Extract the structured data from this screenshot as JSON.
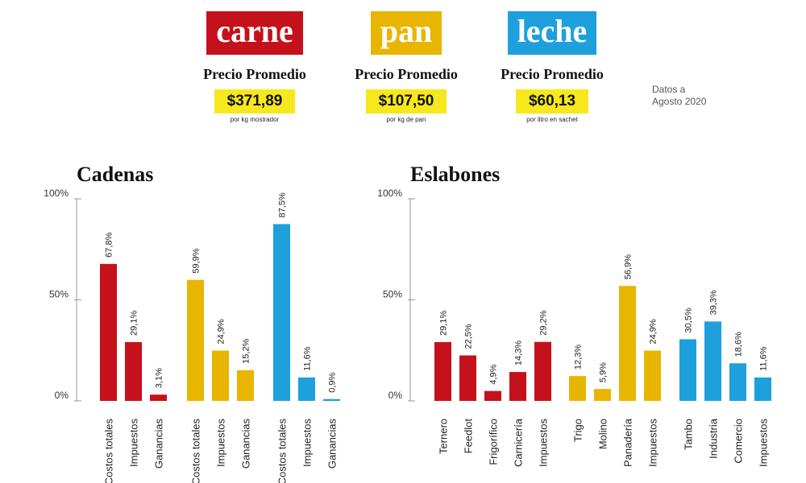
{
  "products": [
    {
      "name": "carne",
      "color": "#c5111b",
      "price_title": "Precio Promedio",
      "price": "$371,89",
      "unit": "por kg mostrador"
    },
    {
      "name": "pan",
      "color": "#e8b500",
      "price_title": "Precio Promedio",
      "price": "$107,50",
      "unit": "por kg de pan"
    },
    {
      "name": "leche",
      "color": "#1ea0dc",
      "price_title": "Precio Promedio",
      "price": "$60,13",
      "unit": "por litro en sachet"
    }
  ],
  "date_note": {
    "line1": "Datos a",
    "line2": "Agosto 2020"
  },
  "chart_data": [
    {
      "type": "bar",
      "title": "Cadenas",
      "ylim": [
        0,
        100
      ],
      "yticks": [
        "0%",
        "50%",
        "100%"
      ],
      "groups": [
        {
          "color": "#c5111b",
          "categories": [
            "Costos totales",
            "Impuestos",
            "Ganancias"
          ],
          "values": [
            67.8,
            29.1,
            3.1
          ],
          "labels": [
            "67,8%",
            "29,1%",
            "3,1%"
          ]
        },
        {
          "color": "#e8b500",
          "categories": [
            "Costos totales",
            "Impuestos",
            "Ganancias"
          ],
          "values": [
            59.9,
            24.9,
            15.2
          ],
          "labels": [
            "59,9%",
            "24,9%",
            "15,2%"
          ]
        },
        {
          "color": "#1ea0dc",
          "categories": [
            "Costos totales",
            "Impuestos",
            "Ganancias"
          ],
          "values": [
            87.5,
            11.6,
            0.9
          ],
          "labels": [
            "87,5%",
            "11,6%",
            "0,9%"
          ]
        }
      ]
    },
    {
      "type": "bar",
      "title": "Eslabones",
      "ylim": [
        0,
        100
      ],
      "yticks": [
        "0%",
        "50%",
        "100%"
      ],
      "groups": [
        {
          "color": "#c5111b",
          "categories": [
            "Ternero",
            "Feedlot",
            "Frigorífico",
            "Carnicería",
            "Impuestos"
          ],
          "values": [
            29.1,
            22.5,
            4.9,
            14.3,
            29.2
          ],
          "labels": [
            "29,1%",
            "22,5%",
            "4,9%",
            "14,3%",
            "29,2%"
          ]
        },
        {
          "color": "#e8b500",
          "categories": [
            "Trigo",
            "Molino",
            "Panadería",
            "Impuestos"
          ],
          "values": [
            12.3,
            5.9,
            56.9,
            24.9
          ],
          "labels": [
            "12,3%",
            "5,9%",
            "56,9%",
            "24,9%"
          ]
        },
        {
          "color": "#1ea0dc",
          "categories": [
            "Tambo",
            "Industria",
            "Comercio",
            "Impuestos"
          ],
          "values": [
            30.5,
            39.3,
            18.6,
            11.6
          ],
          "labels": [
            "30,5%",
            "39,3%",
            "18,6%",
            "11,6%"
          ]
        }
      ]
    }
  ]
}
